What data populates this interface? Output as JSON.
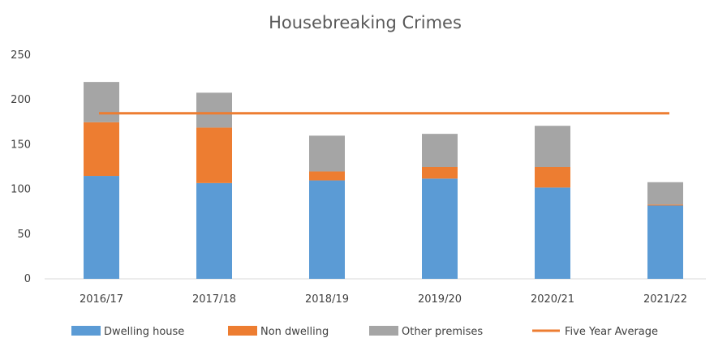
{
  "chart_data": {
    "type": "bar",
    "stacked": true,
    "title": "Housebreaking  Crimes",
    "xlabel": "",
    "ylabel": "",
    "categories": [
      "2016/17",
      "2017/18",
      "2018/19",
      "2019/20",
      "2020/21",
      "2021/22"
    ],
    "ylim": [
      0,
      250
    ],
    "yticks": [
      "0",
      "50",
      "100",
      "150",
      "200",
      "250"
    ],
    "grid": false,
    "legend_position": "bottom",
    "series": [
      {
        "name": "Dwelling house",
        "values": [
          115,
          107,
          110,
          112,
          102,
          82
        ],
        "color": "#5b9bd5"
      },
      {
        "name": "Non dwelling",
        "values": [
          60,
          62,
          10,
          13,
          23,
          1
        ],
        "color": "#ed7d31"
      },
      {
        "name": "Other premises",
        "values": [
          45,
          39,
          40,
          37,
          46,
          25
        ],
        "color": "#a5a5a5"
      }
    ],
    "line_series": {
      "name": "Five Year Average",
      "value": 185,
      "color": "#ed7d31",
      "span": [
        "2016/17",
        "2021/22"
      ]
    }
  }
}
